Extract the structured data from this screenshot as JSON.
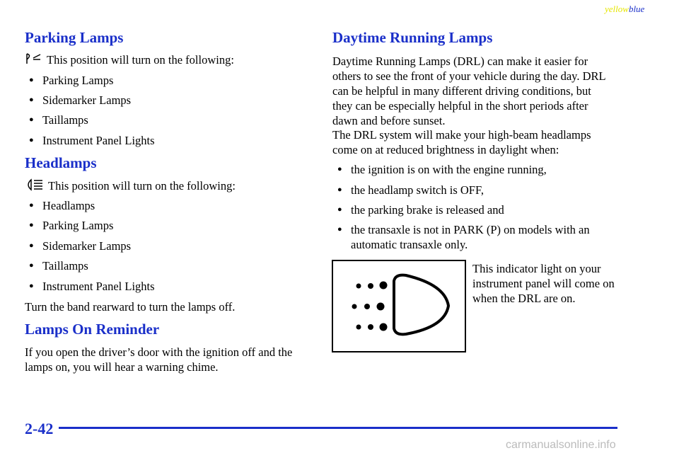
{
  "header": {
    "yellow": "yellow",
    "blue": "blue"
  },
  "parking": {
    "title": "Parking Lamps",
    "intro": "This position will turn on the following:",
    "items": [
      "Parking Lamps",
      "Sidemarker Lamps",
      "Taillamps",
      "Instrument Panel Lights"
    ]
  },
  "headlamps": {
    "title": "Headlamps",
    "intro": "This position will turn on the following:",
    "items": [
      "Headlamps",
      "Parking Lamps",
      "Sidemarker Lamps",
      "Taillamps",
      "Instrument Panel Lights"
    ],
    "note": "Turn the band rearward to turn the lamps off."
  },
  "reminder": {
    "title": "Lamps On Reminder",
    "text": "If you open the driver’s door with the ignition off and the lamps on, you will hear a warning chime."
  },
  "drl": {
    "title": "Daytime Running Lamps",
    "paragraphs": [
      "Daytime Running Lamps (DRL) can make it easier for others to see the front of your vehicle during the day. DRL can be helpful in many different driving conditions, but they can be especially helpful in the short periods after dawn and before sunset.",
      "The DRL system will make your high-beam headlamps come on at reduced brightness in daylight when:"
    ],
    "items": [
      "the ignition is on with the engine running,",
      "the headlamp switch is OFF,",
      "the parking brake is released and",
      "the transaxle is not in PARK (P) on models with an automatic transaxle only."
    ],
    "indicator_caption": "This indicator light on your instrument panel will come on when the DRL are on."
  },
  "footer": {
    "page_number": "2-42",
    "watermark": "carmanualsonline.info"
  }
}
